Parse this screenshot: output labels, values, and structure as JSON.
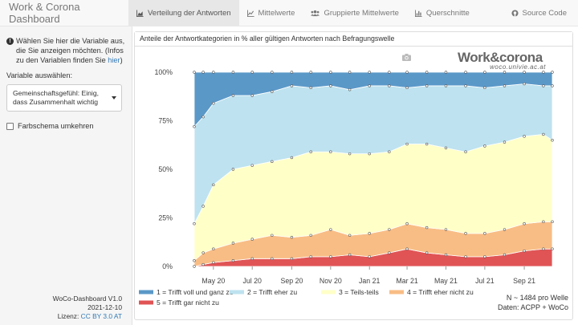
{
  "navbar": {
    "brand": "Work & Corona Dashboard",
    "items": [
      {
        "label": "Verteilung der Antworten",
        "active": true,
        "icon": "area-chart-icon"
      },
      {
        "label": "Mittelwerte",
        "active": false,
        "icon": "line-chart-icon"
      },
      {
        "label": "Gruppierte Mittelwerte",
        "active": false,
        "icon": "users-icon"
      },
      {
        "label": "Querschnitte",
        "active": false,
        "icon": "bar-chart-icon"
      }
    ],
    "source": {
      "label": "Source Code",
      "icon": "github-icon"
    }
  },
  "sidebar": {
    "info_text": "Wählen Sie hier die Variable aus, die Sie anzeigen möchten. (Infos zu den Variablen finden Sie ",
    "info_link": "hier",
    "info_end": ")",
    "variable_label": "Variable auswählen:",
    "selected_variable_line1": "Gemeinschaftsgefühl: Einig,",
    "selected_variable_line2": "dass Zusammenhalt wichtig",
    "checkbox_label": "Farbschema umkehren",
    "checkbox_checked": false,
    "version": "WoCo-Dashboard V1.0",
    "date": "2021-12-10",
    "license_prefix": "Lizenz: ",
    "license_link": "CC BY 3.0 AT"
  },
  "panel": {
    "title": "Anteile der Antwortkategorien in % aller gültigen Antworten nach Befragungswelle",
    "logo_main": "Work&corona",
    "logo_sub": "woco.univie.ac.at",
    "n_note": "N ~ 1484 pro Welle",
    "source_note": "Daten: ACPP + WoCo"
  },
  "chart_data": {
    "type": "area",
    "stacked": true,
    "x": [
      "2020-04-01",
      "2020-04-15",
      "2020-05-01",
      "2020-06-01",
      "2020-07-01",
      "2020-08-01",
      "2020-09-01",
      "2020-10-01",
      "2020-11-01",
      "2020-12-01",
      "2021-01-01",
      "2021-02-01",
      "2021-03-01",
      "2021-04-01",
      "2021-05-01",
      "2021-06-01",
      "2021-07-01",
      "2021-08-01",
      "2021-09-01",
      "2021-10-01",
      "2021-10-15"
    ],
    "x_ticks": [
      "May 20",
      "Jul 20",
      "Sep 20",
      "Nov 20",
      "Jan 21",
      "Mar 21",
      "May 21",
      "Jul 21",
      "Sep 21"
    ],
    "y_ticks": [
      "0%",
      "25%",
      "50%",
      "75%",
      "100%"
    ],
    "ylim": [
      0,
      100
    ],
    "series": [
      {
        "name": "5 = Trifft gar nicht zu",
        "color": "#e05455",
        "values": [
          0,
          1,
          2,
          3,
          4,
          4,
          4,
          5,
          5,
          6,
          5,
          7,
          9,
          7,
          6,
          5,
          5,
          6,
          8,
          9,
          9
        ]
      },
      {
        "name": "4 = Trifft eher nicht zu",
        "color": "#f8bd85",
        "values": [
          3,
          6,
          7,
          9,
          10,
          12,
          11,
          11,
          14,
          10,
          12,
          12,
          13,
          13,
          13,
          12,
          12,
          13,
          14,
          14,
          14
        ]
      },
      {
        "name": "3 = Teils-teils",
        "color": "#ffffc8",
        "values": [
          19,
          24,
          33,
          38,
          38,
          38,
          41,
          43,
          40,
          42,
          41,
          40,
          41,
          43,
          42,
          42,
          45,
          45,
          45,
          45,
          42
        ]
      },
      {
        "name": "2 = Trifft eher zu",
        "color": "#bee2ef",
        "values": [
          50,
          46,
          42,
          38,
          36,
          36,
          37,
          33,
          34,
          33,
          35,
          34,
          29,
          30,
          32,
          34,
          30,
          29,
          27,
          25,
          28
        ]
      },
      {
        "name": "1 = Trifft voll und ganz zu",
        "color": "#5a98c8",
        "values": [
          28,
          23,
          16,
          12,
          12,
          10,
          7,
          8,
          7,
          9,
          7,
          7,
          8,
          7,
          7,
          7,
          8,
          7,
          6,
          7,
          7
        ]
      }
    ],
    "legend_position": "bottom",
    "legend_order": [
      4,
      3,
      2,
      1,
      0
    ]
  }
}
